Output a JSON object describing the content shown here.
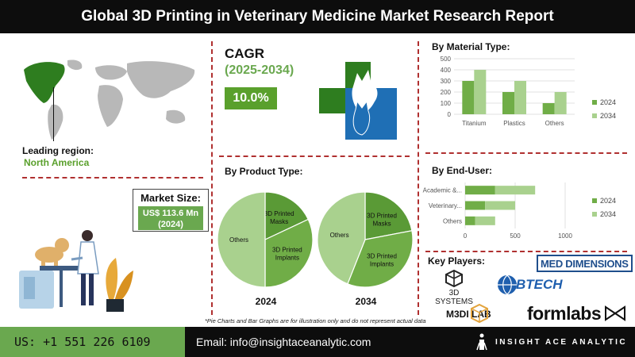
{
  "header": {
    "title": "Global 3D Printing in Veterinary Medicine Market Research Report"
  },
  "region": {
    "label": "Leading region:",
    "value": "North America"
  },
  "cagr": {
    "title": "CAGR",
    "period": "(2025-2034)",
    "value": "10.0%"
  },
  "market_size": {
    "title": "Market Size:",
    "line1": "US$ 113.6 Mn",
    "line2": "(2024)"
  },
  "product": {
    "title": "By Product Type:",
    "year_a": "2024",
    "year_b": "2034"
  },
  "material": {
    "title": "By Material Type:"
  },
  "enduser": {
    "title": "By End-User:"
  },
  "key_players": {
    "title": "Key Players:",
    "logos": [
      "MED DIMENSIONS",
      "3D SYSTEMS",
      "BTECH",
      "M3DI LAB",
      "formlabs"
    ]
  },
  "note": "*Pie Charts and Bar Graphs are for illustration only and do not represent actual data",
  "footer": {
    "phone": "US: +1 551 226 6109",
    "email": "Email: info@insightaceanalytic.com",
    "brand": "INSIGHT ACE ANALYTIC"
  },
  "colors": {
    "dark_green": "#5a9a36",
    "light_green": "#a9d18e",
    "mid_green": "#70ad47",
    "accent_red": "#b03030"
  },
  "chart_data": [
    {
      "type": "pie",
      "title": "By Product Type:",
      "caption": "2024",
      "slices": [
        {
          "label": "3D Printed Masks",
          "value": 18
        },
        {
          "label": "3D Printed Implants",
          "value": 32
        },
        {
          "label": "Others",
          "value": 50
        }
      ]
    },
    {
      "type": "pie",
      "title": "By Product Type:",
      "caption": "2034",
      "slices": [
        {
          "label": "3D Printed Masks",
          "value": 22
        },
        {
          "label": "3D Printed Implants",
          "value": 34
        },
        {
          "label": "Others",
          "value": 44
        }
      ]
    },
    {
      "type": "bar",
      "title": "By Material Type:",
      "categories": [
        "Titanium",
        "Plastics",
        "Others"
      ],
      "series": [
        {
          "name": "2024",
          "values": [
            300,
            200,
            100
          ]
        },
        {
          "name": "2034",
          "values": [
            400,
            300,
            200
          ]
        }
      ],
      "ylim": [
        0,
        500
      ],
      "yticks": [
        0,
        100,
        200,
        300,
        400,
        500
      ],
      "legend": "right"
    },
    {
      "type": "bar",
      "orientation": "horizontal",
      "title": "By End-User:",
      "categories": [
        "Academic &...",
        "Veterinary...",
        "Others"
      ],
      "series": [
        {
          "name": "2024",
          "values": [
            300,
            200,
            100
          ]
        },
        {
          "name": "2034",
          "values": [
            400,
            300,
            200
          ]
        }
      ],
      "xlim": [
        0,
        1000
      ],
      "xticks": [
        0,
        500,
        1000
      ],
      "legend": "right"
    }
  ]
}
